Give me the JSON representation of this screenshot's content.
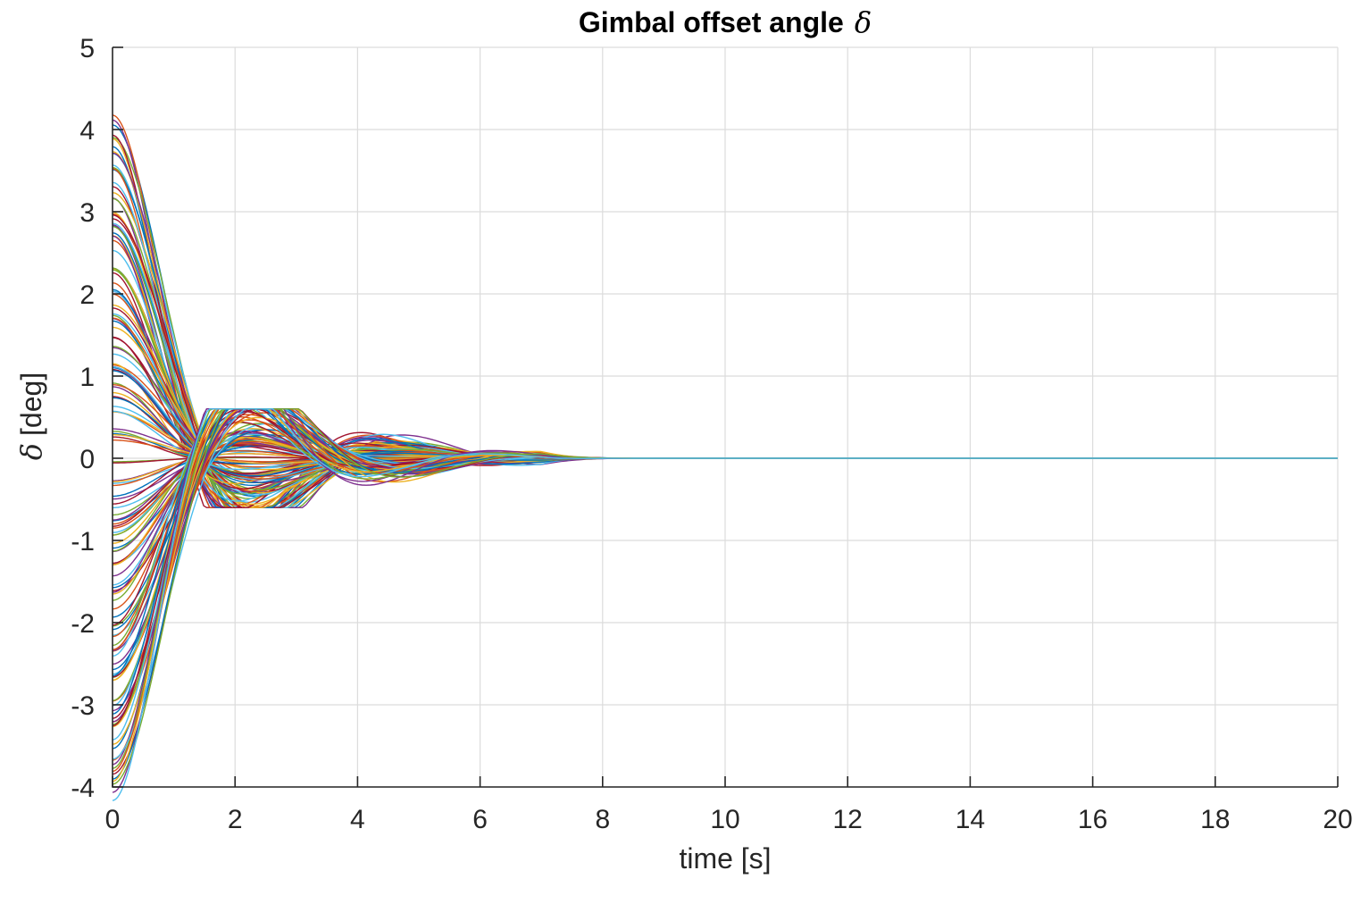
{
  "chart_data": {
    "type": "line",
    "title": "Gimbal offset angle",
    "title_symbol": "δ",
    "xlabel": "time [s]",
    "ylabel_symbol": "δ",
    "ylabel_unit": "[deg]",
    "xlim": [
      0,
      20
    ],
    "ylim": [
      -4,
      5
    ],
    "xticks": [
      0,
      2,
      4,
      6,
      8,
      10,
      12,
      14,
      16,
      18,
      20
    ],
    "yticks": [
      -4,
      -3,
      -2,
      -1,
      0,
      1,
      2,
      3,
      4,
      5
    ],
    "grid": true,
    "legend": "none",
    "series_description": "ensemble of Monte Carlo trajectories with initial offsets between -4 and 4 deg, damped oscillation converging to 0 by about t = 7 s",
    "initial_values": [
      4.0,
      3.8,
      3.6,
      3.4,
      3.2,
      3.0,
      2.8,
      2.6,
      2.4,
      2.2,
      2.0,
      1.8,
      1.6,
      1.4,
      1.2,
      1.0,
      0.8,
      0.6,
      0.4,
      0.2,
      -0.2,
      -0.4,
      -0.6,
      -0.8,
      -1.0,
      -1.2,
      -1.4,
      -1.6,
      -1.8,
      -2.0,
      -2.2,
      -2.4,
      -2.6,
      -2.8,
      -3.0,
      -3.2,
      -3.4,
      -3.6,
      -3.8,
      -4.0
    ],
    "settling_time": 7,
    "overshoot_range": [
      -0.6,
      0.6
    ],
    "colors": [
      "#0072BD",
      "#D95319",
      "#EDB120",
      "#7E2F8E",
      "#77AC30",
      "#4DBEEE",
      "#A2142F"
    ]
  }
}
